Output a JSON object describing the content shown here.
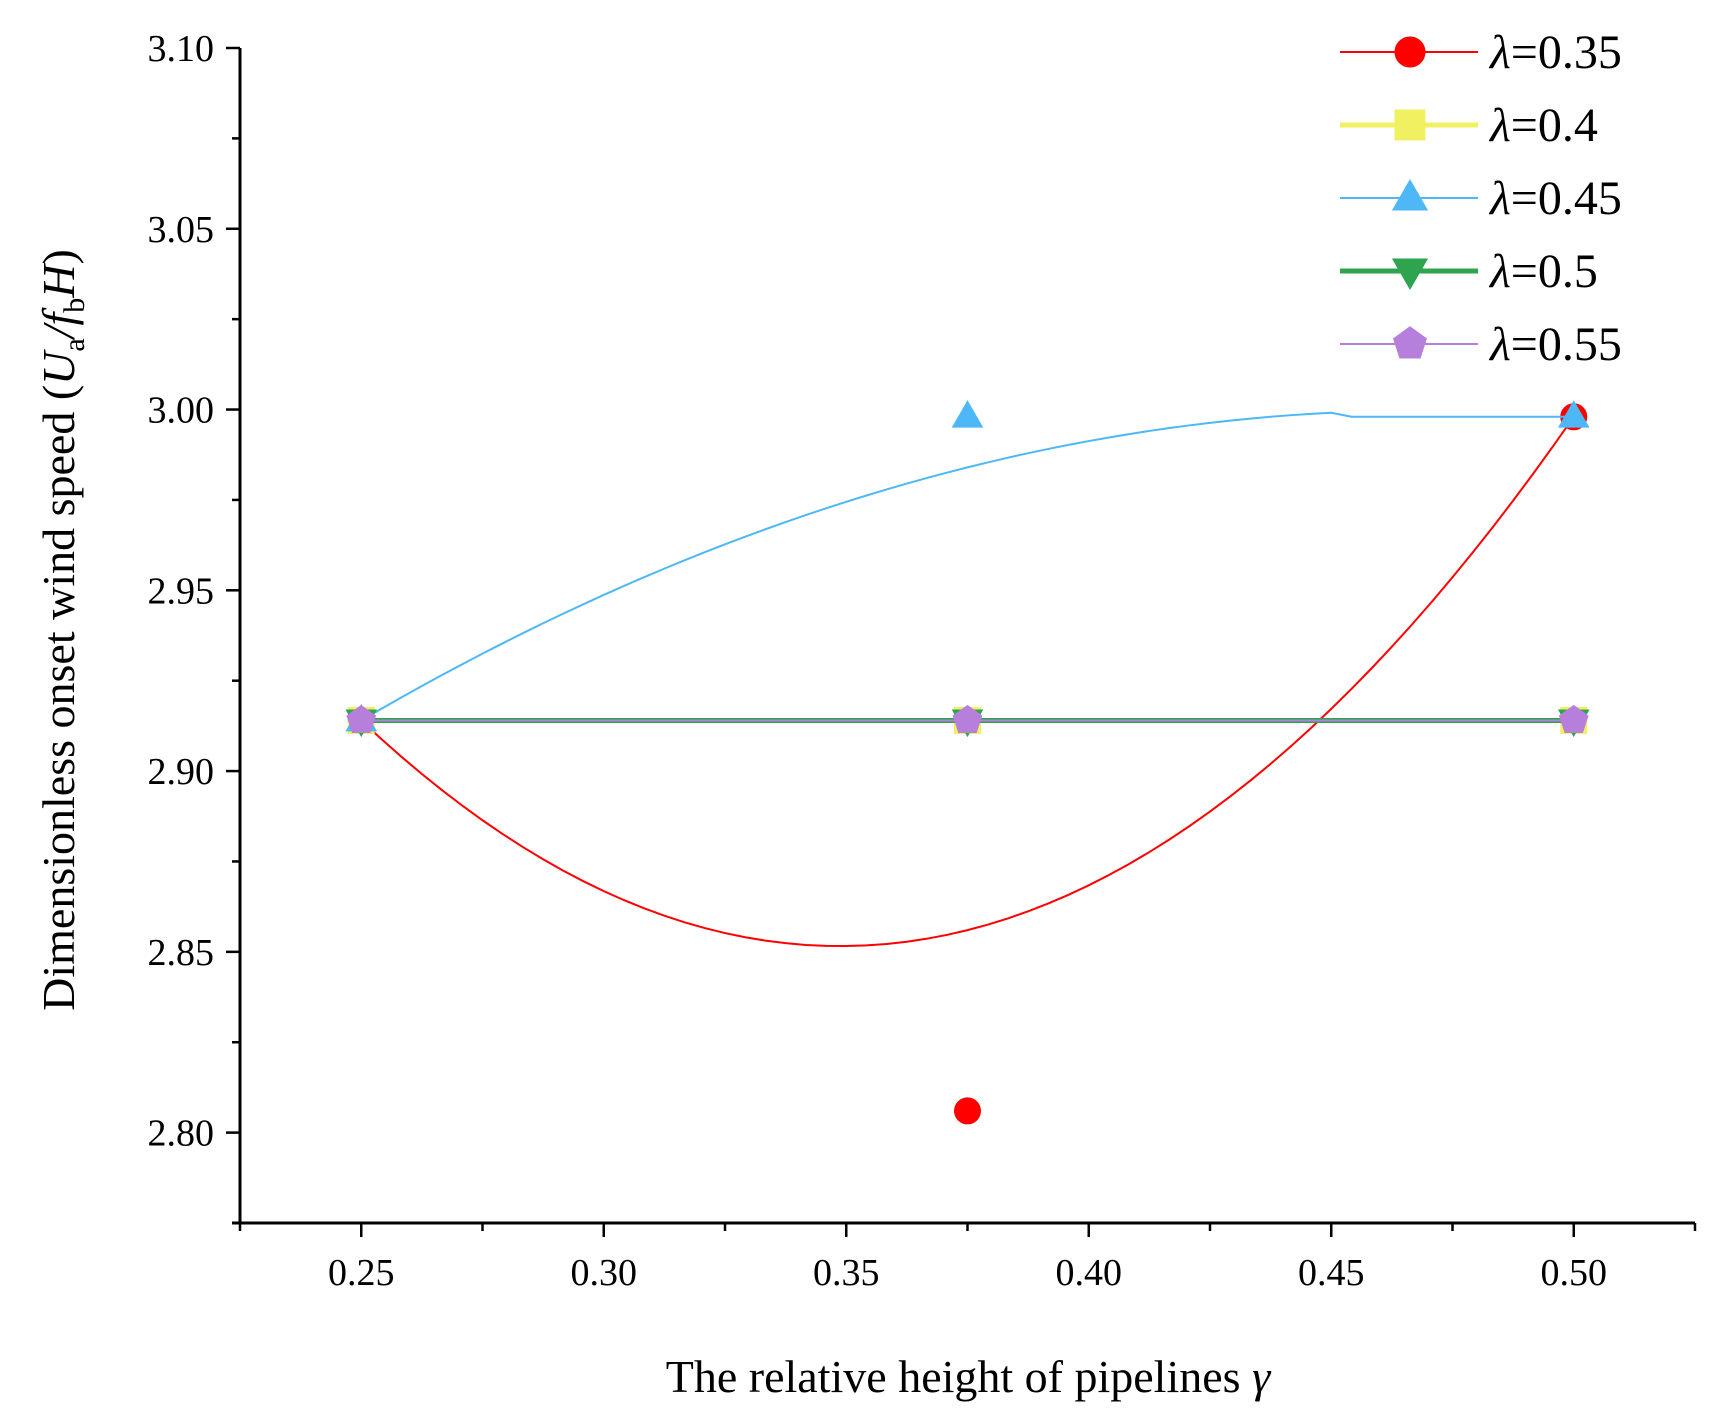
{
  "chart_data": {
    "type": "line",
    "xlabel": "The relative height of pipelines",
    "xlabel_symbol": "γ",
    "ylabel": "Dimensionless onset wind speed (",
    "ylabel_U": "U",
    "ylabel_a": "a",
    "ylabel_slash": "/",
    "ylabel_f": "f",
    "ylabel_b": "b",
    "ylabel_H": "H",
    "ylabel_close": ")",
    "xlim": [
      0.225,
      0.525
    ],
    "ylim": [
      2.775,
      3.1
    ],
    "xticks": [
      0.25,
      0.3,
      0.35,
      0.4,
      0.45,
      0.5
    ],
    "xtick_labels": [
      "0.25",
      "0.30",
      "0.35",
      "0.40",
      "0.45",
      "0.50"
    ],
    "yticks": [
      2.8,
      2.85,
      2.9,
      2.95,
      3.0,
      3.05,
      3.1
    ],
    "ytick_labels": [
      "2.80",
      "2.85",
      "2.90",
      "2.95",
      "3.00",
      "3.05",
      "3.10"
    ],
    "legend_position": "top-right",
    "series": [
      {
        "name": "λ=0.35",
        "symbol": "λ",
        "value_label": "=0.35",
        "marker": "circle",
        "color": "#ff0000",
        "x": [
          0.25,
          0.375,
          0.5
        ],
        "y": [
          2.914,
          2.806,
          2.998
        ]
      },
      {
        "name": "λ=0.4",
        "symbol": "λ",
        "value_label": "=0.4",
        "marker": "square",
        "color": "#f0f060",
        "x": [
          0.25,
          0.375,
          0.5
        ],
        "y": [
          2.914,
          2.914,
          2.914
        ]
      },
      {
        "name": "λ=0.45",
        "symbol": "λ",
        "value_label": "=0.45",
        "marker": "triangle-up",
        "color": "#4db8f5",
        "x": [
          0.25,
          0.375,
          0.5
        ],
        "y": [
          2.914,
          2.998,
          2.998
        ]
      },
      {
        "name": "λ=0.5",
        "symbol": "λ",
        "value_label": "=0.5",
        "marker": "triangle-down",
        "color": "#2ea44f",
        "x": [
          0.25,
          0.375,
          0.5
        ],
        "y": [
          2.914,
          2.914,
          2.914
        ]
      },
      {
        "name": "λ=0.55",
        "symbol": "λ",
        "value_label": "=0.55",
        "marker": "pentagon",
        "color": "#b67fdc",
        "x": [
          0.25,
          0.375,
          0.5
        ],
        "y": [
          2.914,
          2.914,
          2.914
        ]
      }
    ]
  }
}
